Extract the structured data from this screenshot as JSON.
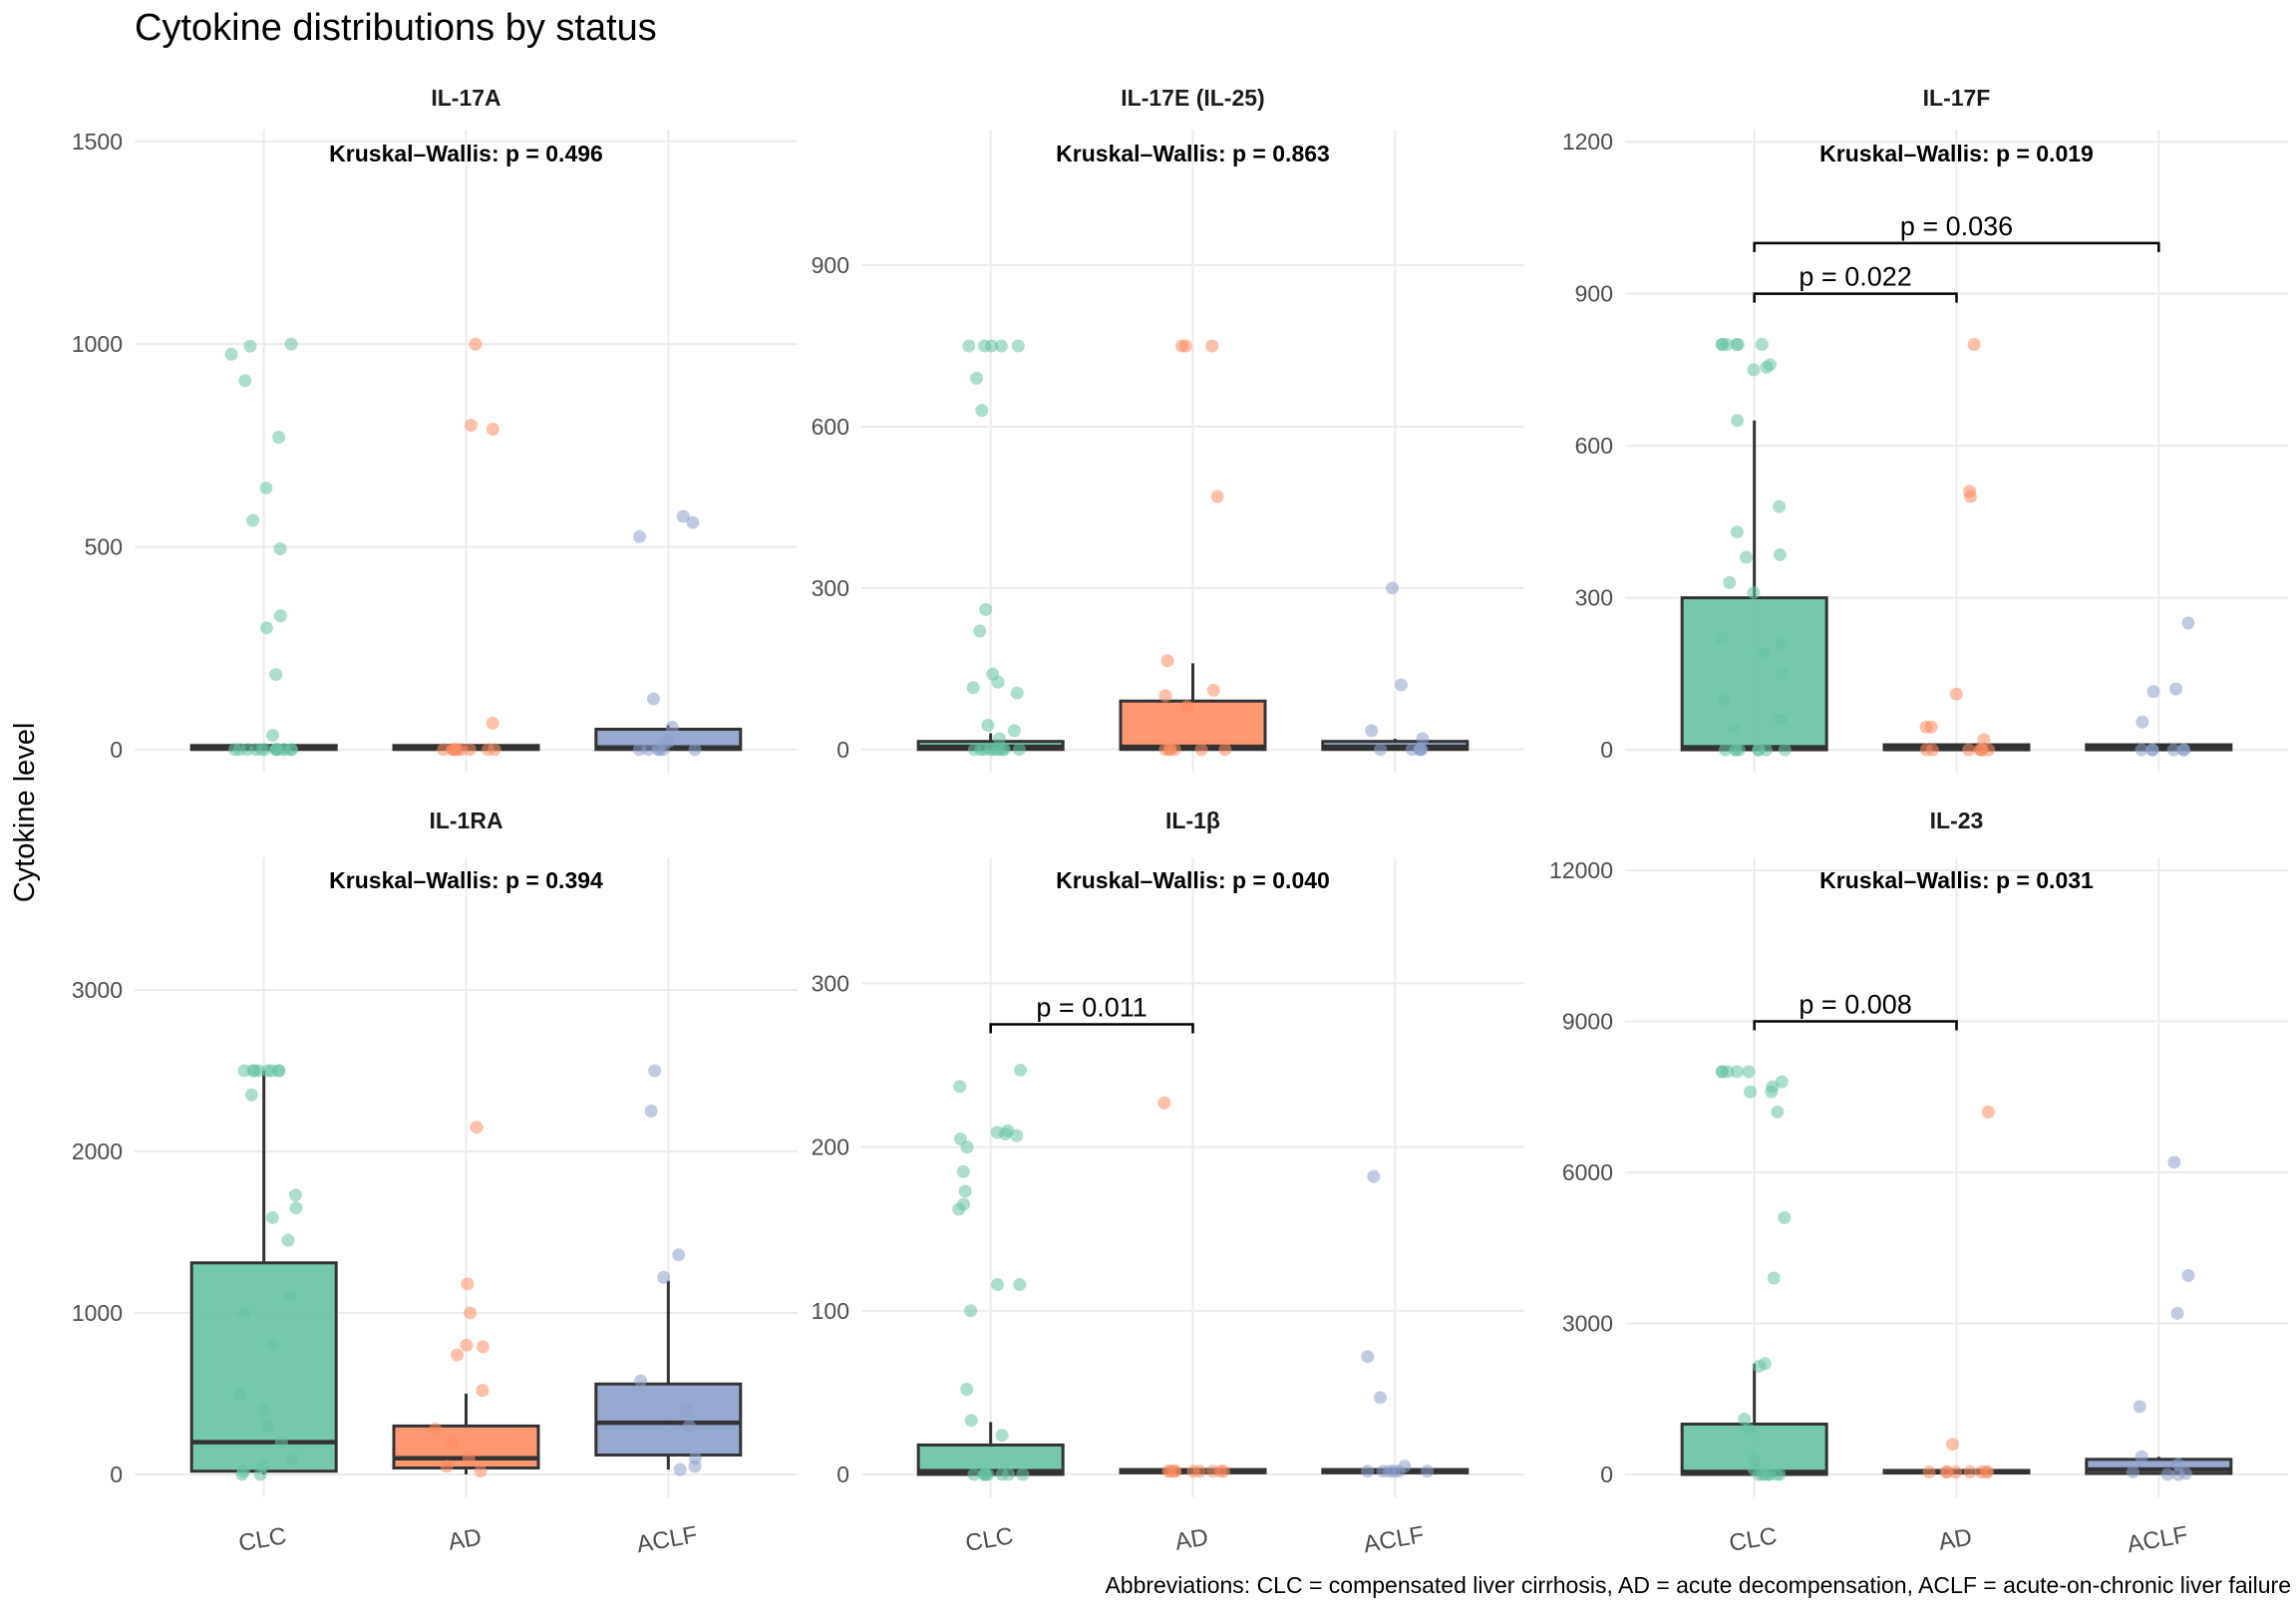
{
  "chart_data": {
    "type": "box",
    "title": "Cytokine distributions by status",
    "ylabel": "Cytokine level",
    "xlabel": "",
    "caption": "Abbreviations: CLC = compensated liver cirrhosis, AD = acute decompensation, ACLF = acute-on-chronic liver failure",
    "categories": [
      "CLC",
      "AD",
      "ACLF"
    ],
    "colors": {
      "CLC": "#66c2a5",
      "AD": "#fc8d62",
      "ACLF": "#8da0cb"
    },
    "grid": true,
    "panels": [
      {
        "name": "IL-17A",
        "test": "Kruskal–Wallis: p = 0.496",
        "ylim": [
          -57,
          1529
        ],
        "yticks": [
          0,
          500,
          1000,
          1500
        ],
        "boxes": [
          {
            "group": "CLC",
            "q1": 0,
            "median": 5,
            "q3": 10,
            "whisker_low": 0,
            "whisker_high": 10,
            "points": [
              975,
              1000,
              995,
              910,
              770,
              645,
              565,
              495,
              330,
              300,
              185,
              35,
              0,
              0,
              0,
              0,
              0,
              0,
              0,
              0,
              0,
              0,
              0,
              0,
              0,
              0
            ]
          },
          {
            "group": "AD",
            "q1": 0,
            "median": 5,
            "q3": 10,
            "whisker_low": 0,
            "whisker_high": 10,
            "points": [
              1000,
              800,
              790,
              65,
              0,
              0,
              0,
              0,
              0,
              0,
              0,
              0,
              0,
              0
            ]
          },
          {
            "group": "ACLF",
            "q1": 0,
            "median": 5,
            "q3": 50,
            "whisker_low": 0,
            "whisker_high": 60,
            "points": [
              575,
              560,
              525,
              125,
              55,
              20,
              0,
              0,
              0,
              0,
              0,
              0
            ]
          }
        ],
        "brackets": []
      },
      {
        "name": "IL-17E (IL-25)",
        "test": "Kruskal–Wallis: p = 0.863",
        "ylim": [
          -43,
          1152
        ],
        "yticks": [
          0,
          300,
          600,
          900
        ],
        "boxes": [
          {
            "group": "CLC",
            "q1": 0,
            "median": 5,
            "q3": 15,
            "whisker_low": 0,
            "whisker_high": 30,
            "points": [
              750,
              750,
              750,
              750,
              750,
              690,
              630,
              260,
              220,
              140,
              125,
              115,
              105,
              45,
              35,
              20,
              0,
              0,
              0,
              0,
              0,
              0,
              0,
              0,
              0,
              0
            ]
          },
          {
            "group": "AD",
            "q1": 0,
            "median": 5,
            "q3": 90,
            "whisker_low": 0,
            "whisker_high": 160,
            "points": [
              750,
              750,
              750,
              470,
              165,
              110,
              100,
              80,
              0,
              0,
              0,
              0,
              0,
              0
            ]
          },
          {
            "group": "ACLF",
            "q1": 0,
            "median": 5,
            "q3": 15,
            "whisker_low": 0,
            "whisker_high": 20,
            "points": [
              300,
              120,
              35,
              20,
              0,
              0,
              0,
              0,
              0,
              0
            ]
          }
        ],
        "brackets": []
      },
      {
        "name": "IL-17F",
        "test": "Kruskal–Wallis: p = 0.019",
        "ylim": [
          -45,
          1224
        ],
        "yticks": [
          0,
          300,
          600,
          900,
          1200
        ],
        "boxes": [
          {
            "group": "CLC",
            "q1": 0,
            "median": 5,
            "q3": 300,
            "whisker_low": 0,
            "whisker_high": 650,
            "points": [
              800,
              800,
              800,
              800,
              800,
              800,
              760,
              750,
              755,
              650,
              480,
              430,
              380,
              385,
              330,
              310,
              220,
              210,
              190,
              150,
              100,
              60,
              40,
              0,
              0,
              0,
              0,
              0,
              0,
              0,
              0
            ]
          },
          {
            "group": "AD",
            "q1": 0,
            "median": 5,
            "q3": 10,
            "whisker_low": 0,
            "whisker_high": 10,
            "points": [
              800,
              510,
              500,
              110,
              45,
              45,
              20,
              0,
              0,
              0,
              0,
              0,
              0,
              0
            ]
          },
          {
            "group": "ACLF",
            "q1": 0,
            "median": 5,
            "q3": 10,
            "whisker_low": 0,
            "whisker_high": 10,
            "points": [
              250,
              120,
              115,
              55,
              0,
              0,
              0,
              0,
              0,
              0
            ]
          }
        ],
        "brackets": [
          {
            "from": "CLC",
            "to": "AD",
            "y": 900,
            "label": "p = 0.022"
          },
          {
            "from": "CLC",
            "to": "ACLF",
            "y": 1000,
            "label": "p = 0.036"
          }
        ]
      },
      {
        "name": "IL-1RA",
        "test": "Kruskal–Wallis: p = 0.394",
        "ylim": [
          -142,
          3821
        ],
        "yticks": [
          0,
          1000,
          2000,
          3000
        ],
        "boxes": [
          {
            "group": "CLC",
            "q1": 20,
            "median": 200,
            "q3": 1310,
            "whisker_low": 0,
            "whisker_high": 2500,
            "points": [
              2500,
              2500,
              2500,
              2500,
              2500,
              2500,
              2500,
              2500,
              2350,
              1730,
              1650,
              1590,
              1450,
              1100,
              1000,
              800,
              500,
              400,
              300,
              200,
              100,
              50,
              20,
              0,
              0
            ]
          },
          {
            "group": "AD",
            "q1": 40,
            "median": 100,
            "q3": 300,
            "whisker_low": 0,
            "whisker_high": 500,
            "points": [
              2150,
              1180,
              1000,
              800,
              790,
              740,
              520,
              280,
              200,
              100,
              50,
              20
            ]
          },
          {
            "group": "ACLF",
            "q1": 120,
            "median": 320,
            "q3": 560,
            "whisker_low": 30,
            "whisker_high": 1200,
            "points": [
              2500,
              2250,
              1360,
              1220,
              580,
              400,
              300,
              100,
              50,
              30
            ]
          }
        ],
        "brackets": []
      },
      {
        "name": "IL-1β",
        "test": "Kruskal–Wallis: p = 0.040",
        "ylim": [
          -14,
          377
        ],
        "yticks": [
          0,
          100,
          200,
          300
        ],
        "boxes": [
          {
            "group": "CLC",
            "q1": 0,
            "median": 2,
            "q3": 18,
            "whisker_low": 0,
            "whisker_high": 32,
            "points": [
              247,
              237,
              210,
              209,
              208,
              207,
              205,
              200,
              185,
              173,
              165,
              162,
              116,
              116,
              100,
              52,
              33,
              24,
              0,
              0,
              0,
              0,
              0,
              0,
              0,
              0
            ]
          },
          {
            "group": "AD",
            "q1": 1,
            "median": 2,
            "q3": 3,
            "whisker_low": 1,
            "whisker_high": 3,
            "points": [
              227,
              2,
              2,
              2,
              2,
              2,
              2,
              2,
              2,
              2
            ]
          },
          {
            "group": "ACLF",
            "q1": 1,
            "median": 2,
            "q3": 3,
            "whisker_low": 1,
            "whisker_high": 3,
            "points": [
              182,
              72,
              47,
              5,
              2,
              2,
              2,
              2,
              2,
              2
            ]
          }
        ],
        "brackets": [
          {
            "from": "CLC",
            "to": "AD",
            "y": 275,
            "label": "p = 0.011"
          }
        ]
      },
      {
        "name": "IL-23",
        "test": "Kruskal–Wallis: p = 0.031",
        "ylim": [
          -455,
          12257
        ],
        "yticks": [
          0,
          3000,
          6000,
          9000,
          12000
        ],
        "boxes": [
          {
            "group": "CLC",
            "q1": 0,
            "median": 50,
            "q3": 1000,
            "whisker_low": 0,
            "whisker_high": 2200,
            "points": [
              8000,
              8000,
              8000,
              8000,
              8000,
              7800,
              7700,
              7600,
              7600,
              7200,
              5100,
              3900,
              2200,
              2150,
              1100,
              900,
              300,
              100,
              0,
              0,
              0,
              0,
              0,
              0,
              0
            ]
          },
          {
            "group": "AD",
            "q1": 30,
            "median": 50,
            "q3": 80,
            "whisker_low": 30,
            "whisker_high": 80,
            "points": [
              7200,
              600,
              50,
              50,
              50,
              50,
              50,
              50,
              50,
              50
            ]
          },
          {
            "group": "ACLF",
            "q1": 20,
            "median": 100,
            "q3": 300,
            "whisker_low": 0,
            "whisker_high": 350,
            "points": [
              6200,
              3950,
              3200,
              1350,
              350,
              200,
              50,
              20,
              0,
              0
            ]
          }
        ],
        "brackets": [
          {
            "from": "CLC",
            "to": "AD",
            "y": 9000,
            "label": "p = 0.008"
          }
        ]
      }
    ]
  }
}
